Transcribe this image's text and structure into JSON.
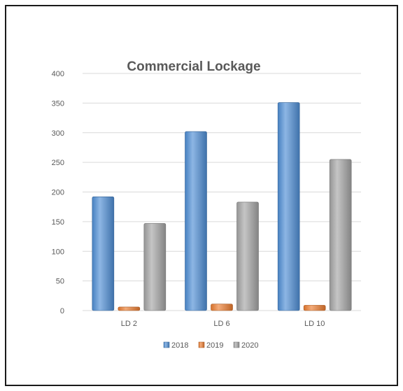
{
  "chart_data": {
    "type": "bar",
    "title": "Commercial Lockage",
    "categories": [
      "LD 2",
      "LD 6",
      "LD 10"
    ],
    "series": [
      {
        "name": "2018",
        "values": [
          192,
          302,
          351
        ],
        "color": "#4f8fd6"
      },
      {
        "name": "2019",
        "values": [
          6,
          11,
          9
        ],
        "color": "#ed7d31"
      },
      {
        "name": "2020",
        "values": [
          147,
          183,
          255
        ],
        "color": "#a5a5a5"
      }
    ],
    "ylim": [
      0,
      400
    ],
    "yticks": [
      "0",
      "50",
      "100",
      "150",
      "200",
      "250",
      "300",
      "350",
      "400"
    ],
    "grid": true,
    "legend_position": "bottom"
  }
}
